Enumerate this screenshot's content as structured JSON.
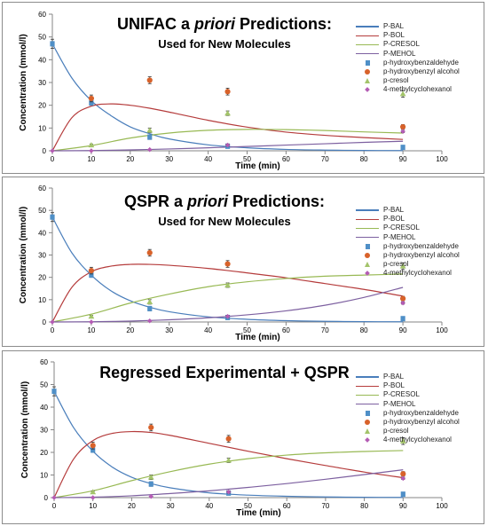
{
  "chart_data": [
    {
      "type": "scatter",
      "title": "UNIFAC a priori Predictions:",
      "title_parts": [
        "UNIFAC a ",
        "priori",
        " Predictions:"
      ],
      "subtitle": "Used for New Molecules",
      "xlabel": "Time (min)",
      "ylabel": "Concentration (mmol/l)",
      "xlim": [
        0,
        100
      ],
      "ylim": [
        0,
        60
      ],
      "xticks": [
        0,
        10,
        20,
        30,
        40,
        50,
        60,
        70,
        80,
        90,
        100
      ],
      "yticks": [
        0,
        10,
        20,
        30,
        40,
        50,
        60
      ],
      "legend_position": "right",
      "lines": [
        {
          "name": "P-BAL",
          "color": "#4a7ebb",
          "x": [
            0,
            5,
            10,
            15,
            20,
            25,
            30,
            40,
            50,
            60,
            70,
            80,
            90
          ],
          "y": [
            47,
            32,
            22,
            15.5,
            10.5,
            7.5,
            5.2,
            2.6,
            1.3,
            0.6,
            0.3,
            0.15,
            0.1
          ]
        },
        {
          "name": "P-BOL",
          "color": "#b53c3c",
          "x": [
            0,
            5,
            10,
            15,
            20,
            25,
            30,
            40,
            50,
            60,
            70,
            80,
            90
          ],
          "y": [
            0,
            14.5,
            19.6,
            20.6,
            20,
            18.7,
            17,
            13.4,
            10.4,
            8.2,
            6.8,
            5.8,
            5
          ]
        },
        {
          "name": "P-CRESOL",
          "color": "#98b954",
          "x": [
            0,
            10,
            20,
            30,
            40,
            50,
            60,
            70,
            80,
            90
          ],
          "y": [
            0,
            2.3,
            5.6,
            7.8,
            9,
            9.4,
            9.3,
            8.9,
            8.3,
            7.8
          ]
        },
        {
          "name": "P-MEHOL",
          "color": "#7d60a0",
          "x": [
            0,
            10,
            20,
            30,
            40,
            50,
            60,
            70,
            80,
            90
          ],
          "y": [
            0,
            0.1,
            0.4,
            0.8,
            1.3,
            1.9,
            2.5,
            3.1,
            3.7,
            4.2
          ]
        }
      ],
      "points": [
        {
          "name": "p-hydroxybenzaldehyde",
          "marker": "square",
          "color": "#4f8fc7",
          "x": [
            0,
            10,
            25,
            45,
            90
          ],
          "y": [
            47,
            21,
            6,
            2,
            1.5
          ],
          "err": [
            2,
            1,
            1,
            0.5,
            0.5
          ]
        },
        {
          "name": "p-hydroxybenzyl alcohol",
          "marker": "circle",
          "color": "#d8622a",
          "x": [
            10,
            25,
            45,
            90
          ],
          "y": [
            23,
            31,
            26,
            10.5
          ],
          "err": [
            1.5,
            1.5,
            1.5,
            1
          ]
        },
        {
          "name": "p-cresol",
          "marker": "triangle",
          "color": "#a3c46a",
          "x": [
            10,
            25,
            45,
            90
          ],
          "y": [
            2.5,
            9,
            16.5,
            25
          ],
          "err": [
            0.5,
            1,
            1,
            1.5
          ]
        },
        {
          "name": "4-methylcyclohexanol",
          "marker": "diamond",
          "color": "#b45cb4",
          "x": [
            0,
            10,
            25,
            45,
            90
          ],
          "y": [
            0,
            0,
            0.5,
            2.5,
            8.5
          ],
          "err": [
            0,
            0,
            0,
            0.5,
            0.5
          ]
        }
      ]
    },
    {
      "type": "scatter",
      "title": "QSPR a priori Predictions:",
      "title_parts": [
        "QSPR a ",
        "priori",
        " Predictions:"
      ],
      "subtitle": "Used for New Molecules",
      "xlabel": "Time (min)",
      "ylabel": "Concentration (mmol/l)",
      "xlim": [
        0,
        100
      ],
      "ylim": [
        0,
        60
      ],
      "xticks": [
        0,
        10,
        20,
        30,
        40,
        50,
        60,
        70,
        80,
        90,
        100
      ],
      "yticks": [
        0,
        10,
        20,
        30,
        40,
        50,
        60
      ],
      "legend_position": "right",
      "lines": [
        {
          "name": "P-BAL",
          "color": "#4a7ebb",
          "x": [
            0,
            5,
            10,
            15,
            20,
            25,
            30,
            40,
            50,
            60,
            70,
            80,
            90
          ],
          "y": [
            47,
            31,
            21,
            14,
            9.5,
            6.6,
            4.6,
            2.3,
            1.2,
            0.6,
            0.3,
            0.15,
            0.1
          ]
        },
        {
          "name": "P-BOL",
          "color": "#b53c3c",
          "x": [
            0,
            5,
            10,
            15,
            20,
            25,
            30,
            40,
            50,
            60,
            70,
            80,
            90
          ],
          "y": [
            0,
            15.5,
            22.5,
            25,
            25.8,
            25.8,
            25.4,
            24,
            22,
            19.8,
            17.2,
            14.6,
            11.6
          ]
        },
        {
          "name": "P-CRESOL",
          "color": "#98b954",
          "x": [
            0,
            10,
            20,
            30,
            40,
            50,
            60,
            70,
            80,
            90
          ],
          "y": [
            0,
            3.5,
            8.5,
            12.5,
            15.8,
            18,
            19.5,
            20.5,
            21,
            21.5
          ]
        },
        {
          "name": "P-MEHOL",
          "color": "#7d60a0",
          "x": [
            0,
            10,
            20,
            30,
            40,
            50,
            60,
            70,
            80,
            90
          ],
          "y": [
            0,
            0.1,
            0.4,
            1,
            1.9,
            3.2,
            5,
            7.5,
            11,
            15.5
          ]
        }
      ],
      "points": [
        {
          "name": "p-hydroxybenzaldehyde",
          "marker": "square",
          "color": "#4f8fc7",
          "x": [
            0,
            10,
            25,
            45,
            90
          ],
          "y": [
            47,
            21,
            6,
            2,
            1.5
          ],
          "err": [
            2,
            1,
            1,
            0.5,
            0.5
          ]
        },
        {
          "name": "p-hydroxybenzyl alcohol",
          "marker": "circle",
          "color": "#d8622a",
          "x": [
            10,
            25,
            45,
            90
          ],
          "y": [
            23,
            31,
            26,
            10.5
          ],
          "err": [
            1.5,
            1.5,
            1.5,
            1
          ]
        },
        {
          "name": "p-cresol",
          "marker": "triangle",
          "color": "#a3c46a",
          "x": [
            10,
            25,
            45,
            90
          ],
          "y": [
            2.5,
            9,
            16.5,
            25
          ],
          "err": [
            0.5,
            1,
            1,
            1.5
          ]
        },
        {
          "name": "4-methylcyclohexanol",
          "marker": "diamond",
          "color": "#b45cb4",
          "x": [
            0,
            10,
            25,
            45,
            90
          ],
          "y": [
            0,
            0,
            0.5,
            2.5,
            8.5
          ],
          "err": [
            0,
            0,
            0,
            0.5,
            0.5
          ]
        }
      ]
    },
    {
      "type": "scatter",
      "title": "Regressed Experimental + QSPR",
      "title_parts": [
        "Regressed Experimental + QSPR",
        "",
        ""
      ],
      "subtitle": "",
      "xlabel": "Time (min)",
      "ylabel": "Concentration (mmol/l)",
      "xlim": [
        0,
        100
      ],
      "ylim": [
        0,
        60
      ],
      "xticks": [
        0,
        10,
        20,
        30,
        40,
        50,
        60,
        70,
        80,
        90,
        100
      ],
      "yticks": [
        0,
        10,
        20,
        30,
        40,
        50,
        60
      ],
      "legend_position": "right",
      "lines": [
        {
          "name": "P-BAL",
          "color": "#4a7ebb",
          "x": [
            0,
            5,
            10,
            15,
            20,
            25,
            30,
            40,
            50,
            60,
            70,
            80,
            90
          ],
          "y": [
            47,
            31,
            20.5,
            13.5,
            9,
            6.2,
            4.3,
            2.1,
            1.1,
            0.6,
            0.3,
            0.15,
            0.1
          ]
        },
        {
          "name": "P-BOL",
          "color": "#b53c3c",
          "x": [
            0,
            5,
            10,
            15,
            20,
            25,
            30,
            40,
            50,
            60,
            70,
            80,
            90
          ],
          "y": [
            0,
            17,
            25.2,
            28.4,
            29.2,
            28.8,
            27.5,
            24,
            20.5,
            17.2,
            14.2,
            11.3,
            8.8
          ]
        },
        {
          "name": "P-CRESOL",
          "color": "#98b954",
          "x": [
            0,
            10,
            20,
            30,
            40,
            50,
            60,
            70,
            80,
            90
          ],
          "y": [
            0,
            3,
            7.5,
            11.5,
            14.8,
            17.2,
            18.8,
            19.8,
            20.4,
            20.8
          ]
        },
        {
          "name": "P-MEHOL",
          "color": "#7d60a0",
          "x": [
            0,
            10,
            20,
            30,
            40,
            50,
            60,
            70,
            80,
            90
          ],
          "y": [
            0,
            0.2,
            0.8,
            1.8,
            3,
            4.5,
            6.2,
            8.1,
            10.2,
            12.3
          ]
        }
      ],
      "points": [
        {
          "name": "p-hydroxybenzaldehyde",
          "marker": "square",
          "color": "#4f8fc7",
          "x": [
            0,
            10,
            25,
            45,
            90
          ],
          "y": [
            47,
            21,
            6,
            2,
            1.5
          ],
          "err": [
            2,
            1,
            1,
            0.5,
            0.5
          ]
        },
        {
          "name": "p-hydroxybenzyl alcohol",
          "marker": "circle",
          "color": "#d8622a",
          "x": [
            10,
            25,
            45,
            90
          ],
          "y": [
            23,
            31,
            26,
            10.5
          ],
          "err": [
            1.5,
            1.5,
            1.5,
            1
          ]
        },
        {
          "name": "p-cresol",
          "marker": "triangle",
          "color": "#a3c46a",
          "x": [
            10,
            25,
            45,
            90
          ],
          "y": [
            2.5,
            9,
            16.5,
            25
          ],
          "err": [
            0.5,
            1,
            1,
            1.5
          ]
        },
        {
          "name": "4-methylcyclohexanol",
          "marker": "diamond",
          "color": "#b45cb4",
          "x": [
            0,
            10,
            25,
            45,
            90
          ],
          "y": [
            0,
            0,
            0.5,
            2.5,
            8.5
          ],
          "err": [
            0,
            0,
            0,
            0.5,
            0.5
          ]
        }
      ]
    }
  ]
}
